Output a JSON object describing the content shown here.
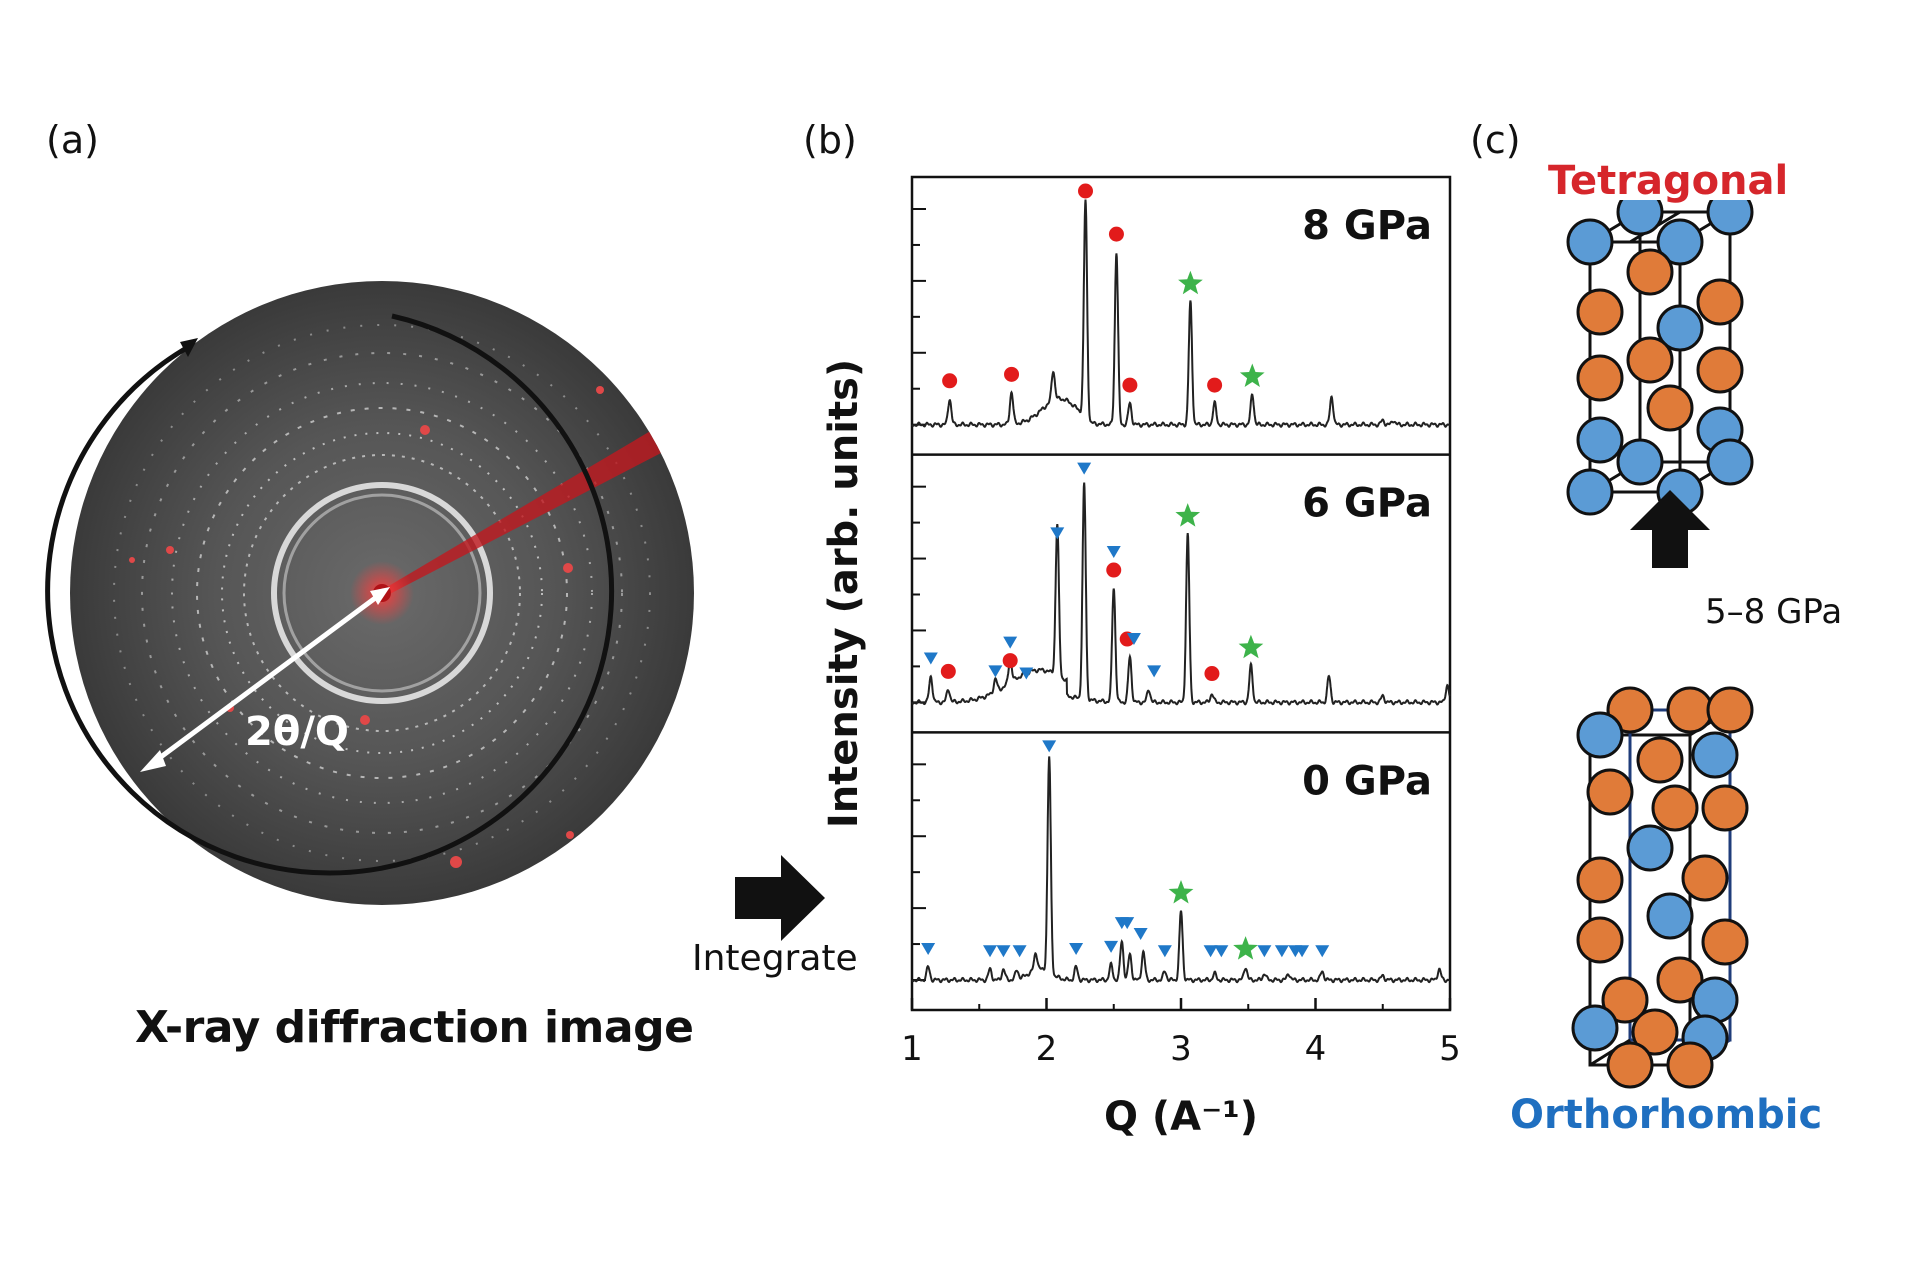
{
  "panels": {
    "a": "(a)",
    "b": "(b)",
    "c": "(c)"
  },
  "xrd": {
    "caption": "X-ray diffraction image",
    "radius_label": "2θ/Q"
  },
  "arrow_label": "Integrate",
  "structures": {
    "top_label": "Tetragonal",
    "bottom_label": "Orthorhombic",
    "transition": "5–8 GPa",
    "colors": {
      "tetragonal": "#d6262b",
      "orthorhombic": "#1f6fc0",
      "atom_blue": "#5b9bd5",
      "atom_orange": "#e07b39"
    }
  },
  "chart_data": {
    "type": "line",
    "xlabel": "Q (A⁻¹)",
    "ylabel": "Intensity (arb. units)",
    "xlim": [
      1,
      5
    ],
    "xticks": [
      "1",
      "2",
      "3",
      "4",
      "5"
    ],
    "markers": {
      "tetragonal": "red circle",
      "orthorhombic": "blue triangle",
      "other": "green star"
    },
    "series": [
      {
        "name": "8 GPa",
        "peaks": [
          [
            1.28,
            0.12
          ],
          [
            1.74,
            0.15
          ],
          [
            2.05,
            0.14
          ],
          [
            2.29,
            1.0
          ],
          [
            2.52,
            0.8
          ],
          [
            2.62,
            0.1
          ],
          [
            3.07,
            0.57
          ],
          [
            3.25,
            0.1
          ],
          [
            3.53,
            0.14
          ],
          [
            4.12,
            0.13
          ],
          [
            4.5,
            0.02
          ],
          [
            4.58,
            0.02
          ]
        ],
        "hump": [
          2.1,
          0.13,
          0.12
        ],
        "circles": [
          1.28,
          1.74,
          2.29,
          2.52,
          2.62,
          3.25
        ],
        "triangles": [],
        "stars": [
          3.07,
          3.53
        ]
      },
      {
        "name": "6 GPa",
        "peaks": [
          [
            1.14,
            0.12
          ],
          [
            1.27,
            0.06
          ],
          [
            1.62,
            0.06
          ],
          [
            1.73,
            0.11
          ],
          [
            2.08,
            0.7
          ],
          [
            2.28,
            1.0
          ],
          [
            2.5,
            0.53
          ],
          [
            2.62,
            0.21
          ],
          [
            2.76,
            0.06
          ],
          [
            3.05,
            0.78
          ],
          [
            3.23,
            0.04
          ],
          [
            3.52,
            0.17
          ],
          [
            4.1,
            0.12
          ],
          [
            4.5,
            0.03
          ],
          [
            4.98,
            0.08
          ]
        ],
        "hump": [
          1.95,
          0.22,
          0.15
        ],
        "circles": [
          1.27,
          1.73,
          2.5,
          2.6,
          3.23
        ],
        "triangles": [
          1.14,
          1.62,
          1.73,
          1.85,
          2.08,
          2.28,
          2.5,
          2.65,
          2.8
        ],
        "stars": [
          3.05,
          3.52
        ]
      },
      {
        "name": "0 GPa",
        "peaks": [
          [
            1.12,
            0.06
          ],
          [
            1.58,
            0.05
          ],
          [
            1.68,
            0.05
          ],
          [
            1.78,
            0.04
          ],
          [
            1.92,
            0.08
          ],
          [
            2.02,
            1.0
          ],
          [
            2.22,
            0.06
          ],
          [
            2.48,
            0.07
          ],
          [
            2.56,
            0.18
          ],
          [
            2.62,
            0.12
          ],
          [
            2.72,
            0.13
          ],
          [
            2.88,
            0.04
          ],
          [
            3.0,
            0.32
          ],
          [
            3.25,
            0.03
          ],
          [
            3.48,
            0.06
          ],
          [
            3.62,
            0.03
          ],
          [
            3.8,
            0.03
          ],
          [
            4.05,
            0.04
          ],
          [
            4.5,
            0.02
          ],
          [
            4.92,
            0.05
          ]
        ],
        "hump": [
          1.95,
          0.08,
          0.05
        ],
        "circles": [],
        "triangles": [
          1.12,
          1.58,
          1.68,
          1.8,
          2.02,
          2.22,
          2.48,
          2.56,
          2.6,
          2.7,
          2.88,
          3.22,
          3.3,
          3.62,
          3.75,
          3.85,
          3.9,
          4.05
        ],
        "stars": [
          3.0,
          3.48
        ]
      }
    ]
  }
}
